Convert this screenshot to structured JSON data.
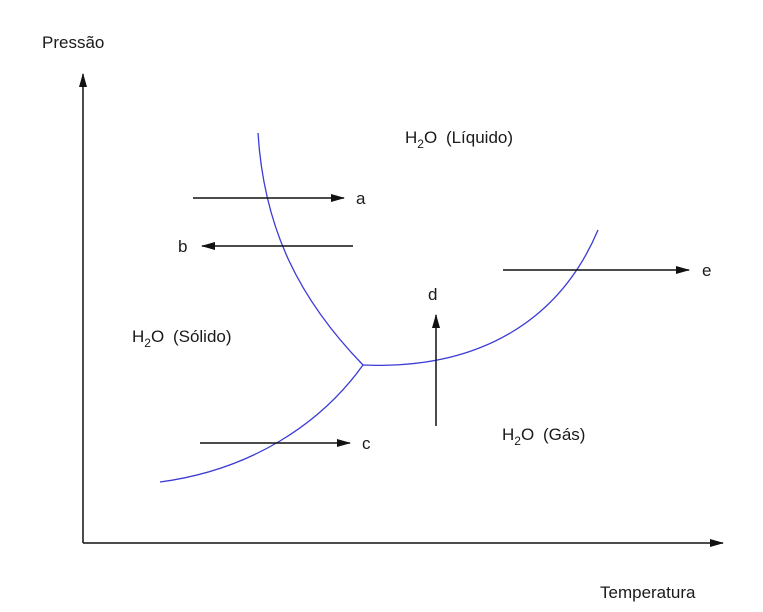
{
  "axes": {
    "y_label": "Pressão",
    "x_label": "Temperatura"
  },
  "phases": {
    "liquid": {
      "formula_main": "H",
      "formula_sub": "2",
      "formula_rest": "O",
      "name": "(Líquido)"
    },
    "solid": {
      "formula_main": "H",
      "formula_sub": "2",
      "formula_rest": "O",
      "name": "(Sólido)"
    },
    "gas": {
      "formula_main": "H",
      "formula_sub": "2",
      "formula_rest": "O",
      "name": "(Gás)"
    }
  },
  "arrows": {
    "a": "a",
    "b": "b",
    "c": "c",
    "d": "d",
    "e": "e"
  },
  "colors": {
    "curve": "#3a3ad6",
    "axis": "#111111",
    "arrow": "#111111",
    "text": "#1a1a1a"
  }
}
